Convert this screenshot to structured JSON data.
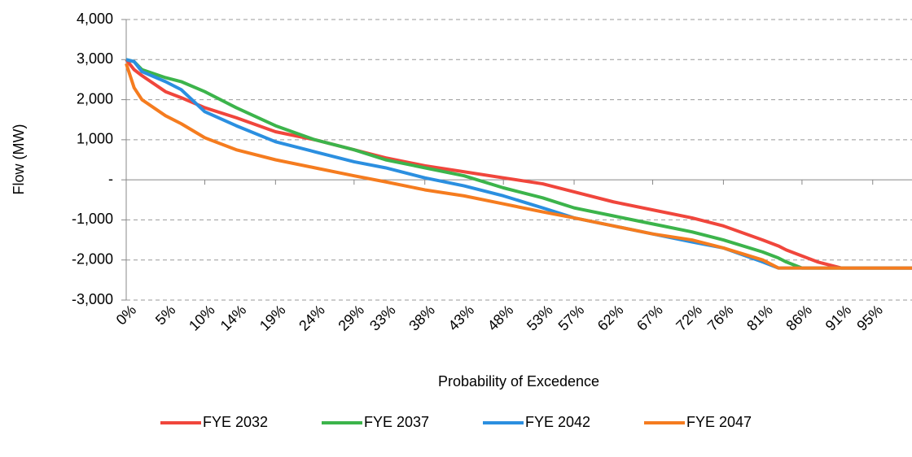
{
  "chart_data": {
    "type": "line",
    "xlabel": "Probability of Excedence",
    "ylabel": "Flow (MW)",
    "x": [
      0,
      1,
      2,
      5,
      7,
      10,
      14,
      19,
      24,
      29,
      33,
      38,
      43,
      48,
      53,
      57,
      62,
      67,
      72,
      76,
      81,
      83,
      84,
      86,
      88,
      91,
      95,
      100
    ],
    "series": [
      {
        "name": "FYE 2032",
        "color": "#f0463c",
        "values": [
          3000,
          2750,
          2600,
          2200,
          2050,
          1800,
          1550,
          1200,
          1000,
          750,
          550,
          350,
          200,
          50,
          -100,
          -300,
          -550,
          -750,
          -950,
          -1150,
          -1500,
          -1650,
          -1750,
          -1900,
          -2050,
          -2200,
          -2200,
          -2200
        ]
      },
      {
        "name": "FYE 2037",
        "color": "#3cb44b",
        "values": [
          3000,
          2950,
          2750,
          2550,
          2450,
          2200,
          1800,
          1350,
          1000,
          750,
          500,
          300,
          100,
          -200,
          -450,
          -700,
          -900,
          -1100,
          -1300,
          -1500,
          -1800,
          -1950,
          -2050,
          -2200,
          -2200,
          -2200,
          -2200,
          -2200
        ]
      },
      {
        "name": "FYE 2042",
        "color": "#2b8fe0",
        "values": [
          3000,
          2950,
          2700,
          2450,
          2250,
          1700,
          1350,
          950,
          700,
          450,
          300,
          50,
          -150,
          -400,
          -700,
          -950,
          -1150,
          -1350,
          -1550,
          -1700,
          -2050,
          -2200,
          -2200,
          -2200,
          -2200,
          -2200,
          -2200,
          -2200
        ]
      },
      {
        "name": "FYE 2047",
        "color": "#f57c1f",
        "values": [
          2900,
          2300,
          2000,
          1600,
          1400,
          1050,
          750,
          500,
          300,
          100,
          -50,
          -250,
          -400,
          -600,
          -800,
          -950,
          -1150,
          -1350,
          -1500,
          -1700,
          -2000,
          -2200,
          -2200,
          -2200,
          -2200,
          -2200,
          -2200,
          -2200
        ]
      }
    ],
    "xlim": [
      0,
      100
    ],
    "xticks": [
      {
        "value": 0,
        "label": "0%"
      },
      {
        "value": 5,
        "label": "5%"
      },
      {
        "value": 10,
        "label": "10%"
      },
      {
        "value": 14,
        "label": "14%"
      },
      {
        "value": 19,
        "label": "19%"
      },
      {
        "value": 24,
        "label": "24%"
      },
      {
        "value": 29,
        "label": "29%"
      },
      {
        "value": 33,
        "label": "33%"
      },
      {
        "value": 38,
        "label": "38%"
      },
      {
        "value": 43,
        "label": "43%"
      },
      {
        "value": 48,
        "label": "48%"
      },
      {
        "value": 53,
        "label": "53%"
      },
      {
        "value": 57,
        "label": "57%"
      },
      {
        "value": 62,
        "label": "62%"
      },
      {
        "value": 67,
        "label": "67%"
      },
      {
        "value": 72,
        "label": "72%"
      },
      {
        "value": 76,
        "label": "76%"
      },
      {
        "value": 81,
        "label": "81%"
      },
      {
        "value": 86,
        "label": "86%"
      },
      {
        "value": 91,
        "label": "91%"
      },
      {
        "value": 95,
        "label": "95%"
      }
    ],
    "ylim": [
      -3000,
      4000
    ],
    "yticks": [
      {
        "value": 4000,
        "label": "4,000"
      },
      {
        "value": 3000,
        "label": "3,000"
      },
      {
        "value": 2000,
        "label": "2,000"
      },
      {
        "value": 1000,
        "label": "1,000"
      },
      {
        "value": 0,
        "label": "-"
      },
      {
        "value": -1000,
        "label": "-1,000"
      },
      {
        "value": -2000,
        "label": "-2,000"
      },
      {
        "value": -3000,
        "label": "-3,000"
      }
    ],
    "grid": true,
    "legend": "bottom"
  }
}
